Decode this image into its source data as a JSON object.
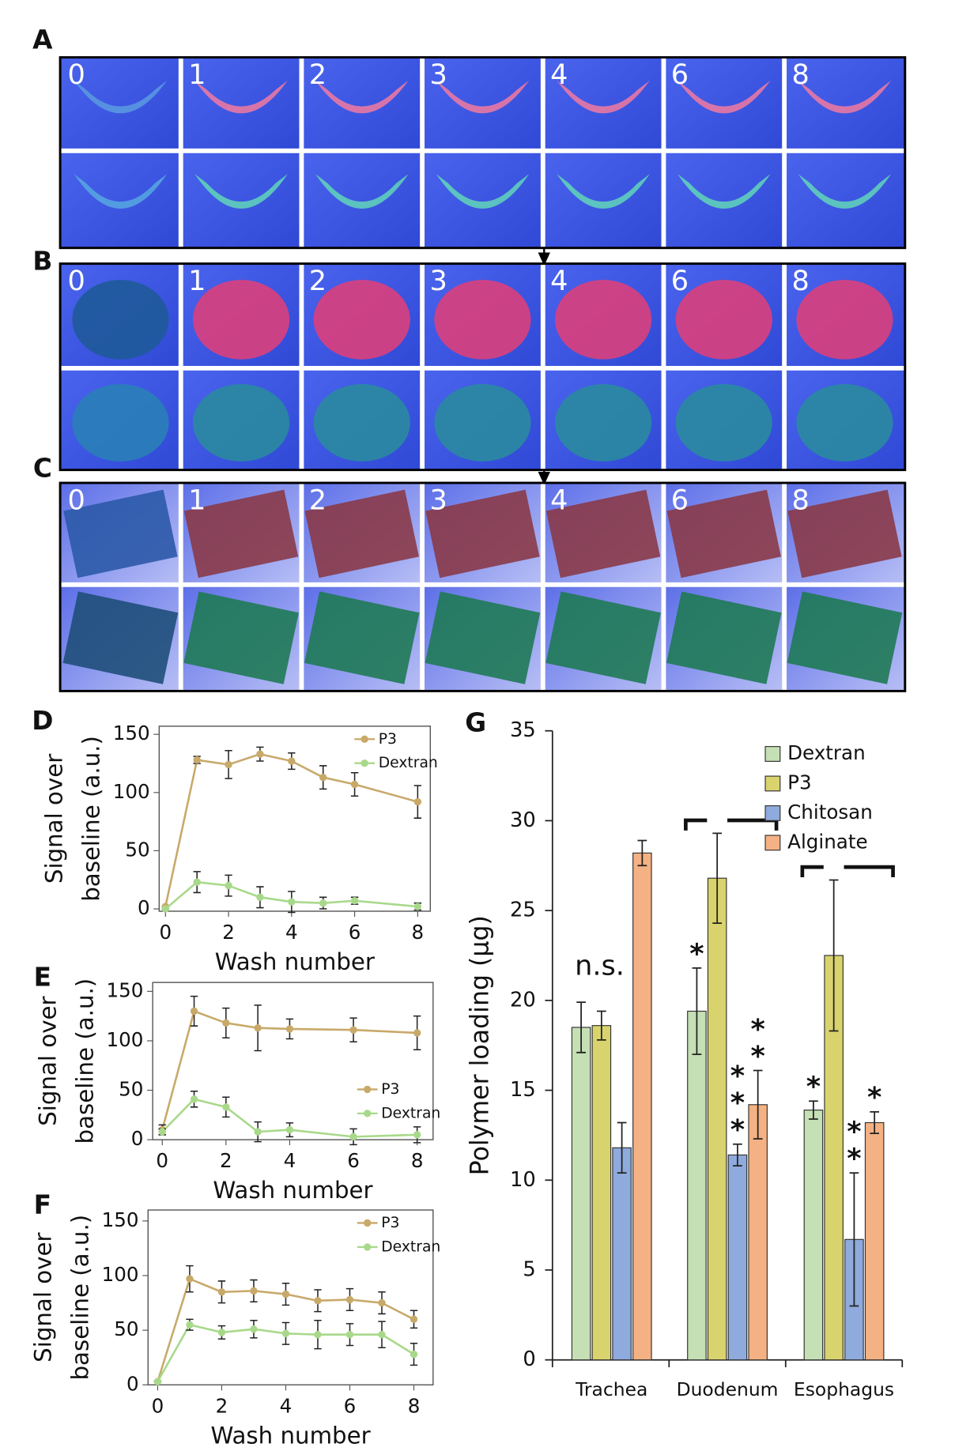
{
  "image_panels": [
    {
      "label": "A",
      "wash_labels": [
        "0",
        "1",
        "2",
        "3",
        "4",
        "6",
        "8"
      ]
    },
    {
      "label": "B",
      "wash_labels": [
        "0",
        "1",
        "2",
        "3",
        "4",
        "6",
        "8"
      ]
    },
    {
      "label": "C",
      "wash_labels": [
        "0",
        "1",
        "2",
        "3",
        "4",
        "6",
        "8"
      ]
    }
  ],
  "chart_data": [
    {
      "type": "line",
      "panel_label": "D",
      "ylabel_lines": [
        "Signal over",
        "baseline (a.u.)"
      ],
      "xlabel": "Wash number",
      "x": [
        0,
        1,
        2,
        3,
        4,
        5,
        6,
        8
      ],
      "xlim": [
        -0.2,
        8.4
      ],
      "xticks": [
        0,
        2,
        4,
        6,
        8
      ],
      "ylim": [
        -2,
        157
      ],
      "yticks": [
        0,
        50,
        100,
        150
      ],
      "legend": "upper right",
      "series": [
        {
          "name": "P3",
          "color": "#c8a96a",
          "values": [
            2,
            128,
            124,
            133,
            127,
            113,
            107,
            92
          ],
          "errors": [
            0,
            3,
            12,
            6,
            7,
            10,
            10,
            14
          ]
        },
        {
          "name": "Dextran",
          "color": "#a8d98a",
          "values": [
            0,
            23,
            20,
            10,
            6,
            5,
            7,
            2
          ],
          "errors": [
            0,
            9,
            9,
            9,
            9,
            5,
            3,
            3
          ]
        }
      ]
    },
    {
      "type": "line",
      "panel_label": "E",
      "ylabel_lines": [
        "Signal over",
        "baseline (a.u.)"
      ],
      "xlabel": "Wash number",
      "x": [
        0,
        1,
        2,
        3,
        4,
        6,
        8
      ],
      "xlim": [
        -0.3,
        8.5
      ],
      "xticks": [
        0,
        2,
        4,
        6,
        8
      ],
      "ylim": [
        0,
        159
      ],
      "yticks": [
        0,
        50,
        100,
        150
      ],
      "legend": "lower right",
      "series": [
        {
          "name": "P3",
          "color": "#c8a96a",
          "values": [
            10,
            130,
            118,
            113,
            112,
            111,
            108
          ],
          "errors": [
            5,
            15,
            15,
            23,
            10,
            12,
            17
          ]
        },
        {
          "name": "Dextran",
          "color": "#a8d98a",
          "values": [
            8,
            41,
            33,
            8,
            10,
            3,
            5
          ],
          "errors": [
            3,
            8,
            10,
            10,
            7,
            8,
            8
          ]
        }
      ]
    },
    {
      "type": "line",
      "panel_label": "F",
      "ylabel_lines": [
        "Signal over",
        "baseline (a.u.)"
      ],
      "xlabel": "Wash number",
      "x": [
        0,
        1,
        2,
        3,
        4,
        5,
        6,
        7,
        8
      ],
      "xlim": [
        -0.3,
        8.6
      ],
      "xticks": [
        0,
        2,
        4,
        6,
        8
      ],
      "ylim": [
        0,
        160
      ],
      "yticks": [
        0,
        50,
        100,
        150
      ],
      "legend": "upper right",
      "series": [
        {
          "name": "P3",
          "color": "#c8a96a",
          "values": [
            3,
            97,
            85,
            86,
            83,
            77,
            78,
            75,
            60
          ],
          "errors": [
            0,
            12,
            10,
            10,
            10,
            10,
            10,
            10,
            8
          ]
        },
        {
          "name": "Dextran",
          "color": "#a8d98a",
          "values": [
            3,
            55,
            48,
            51,
            47,
            46,
            46,
            46,
            28
          ],
          "errors": [
            0,
            5,
            6,
            8,
            10,
            13,
            10,
            12,
            10
          ]
        }
      ]
    },
    {
      "type": "bar",
      "panel_label": "G",
      "ylabel": "Polymer loading (µg)",
      "annotation": "n.s.",
      "categories": [
        "Trachea",
        "Duodenum",
        "Esophagus"
      ],
      "ylim": [
        0,
        35
      ],
      "yticks": [
        0,
        5,
        10,
        15,
        20,
        25,
        30,
        35
      ],
      "legend": "upper right",
      "series": [
        {
          "name": "Dextran",
          "color": "#c5e0b4",
          "values": [
            18.5,
            19.4,
            13.9
          ],
          "errors": [
            1.4,
            2.4,
            0.5
          ],
          "stars": [
            null,
            "*",
            "*"
          ]
        },
        {
          "name": "P3",
          "color": "#d9d36e",
          "values": [
            18.6,
            26.8,
            22.5
          ],
          "errors": [
            0.8,
            2.5,
            4.2
          ],
          "stars": [
            null,
            null,
            null
          ]
        },
        {
          "name": "Chitosan",
          "color": "#8faadc",
          "values": [
            11.8,
            11.4,
            6.7
          ],
          "errors": [
            1.4,
            0.6,
            3.7
          ],
          "stars": [
            null,
            "***",
            "**"
          ]
        },
        {
          "name": "Alginate",
          "color": "#f4b183",
          "values": [
            28.2,
            14.2,
            13.2
          ],
          "errors": [
            0.7,
            1.9,
            0.6
          ],
          "stars": [
            null,
            "**",
            "*"
          ]
        }
      ]
    }
  ]
}
